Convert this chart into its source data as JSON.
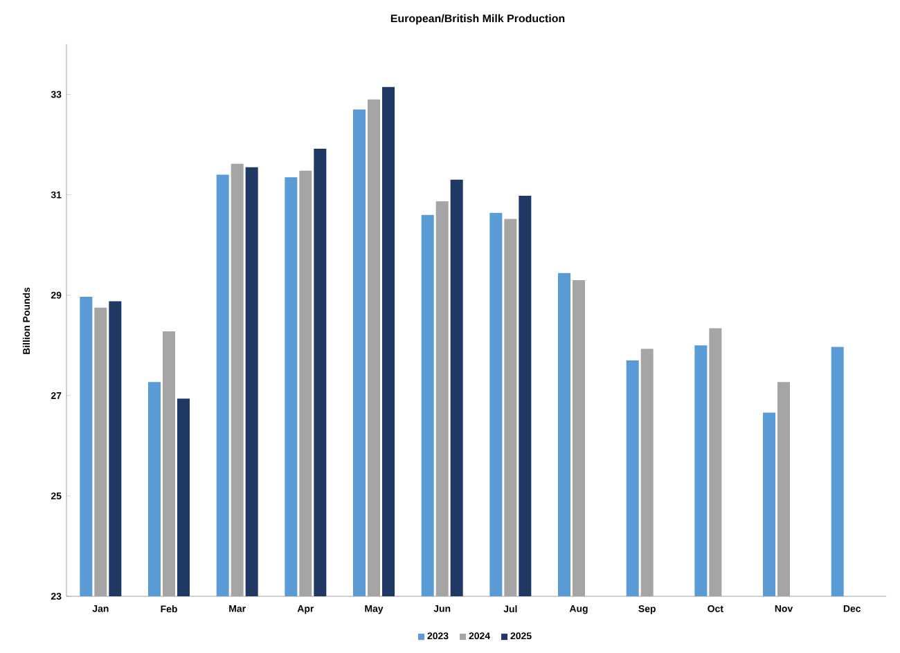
{
  "chart_data": {
    "type": "bar",
    "title": "European/British Milk Production",
    "ylabel": "Billion Pounds",
    "categories": [
      "Jan",
      "Feb",
      "Mar",
      "Apr",
      "May",
      "Jun",
      "Jul",
      "Aug",
      "Sep",
      "Oct",
      "Nov",
      "Dec"
    ],
    "series": [
      {
        "name": "2023",
        "color": "#5b9bd5",
        "values": [
          28.97,
          27.27,
          31.4,
          31.35,
          32.7,
          30.6,
          30.64,
          29.44,
          27.7,
          28.0,
          26.66,
          27.97
        ]
      },
      {
        "name": "2024",
        "color": "#a5a5a5",
        "values": [
          28.75,
          28.28,
          31.62,
          31.48,
          32.9,
          30.87,
          30.52,
          29.3,
          27.93,
          28.34,
          27.27,
          null
        ]
      },
      {
        "name": "2025",
        "color": "#203864",
        "values": [
          28.88,
          26.94,
          31.55,
          31.92,
          33.15,
          31.3,
          30.98,
          null,
          null,
          null,
          null,
          null
        ]
      }
    ],
    "ylim": [
      23,
      34
    ],
    "yticks": [
      23,
      25,
      27,
      29,
      31,
      33
    ],
    "legend": "bottom",
    "grid": false
  }
}
